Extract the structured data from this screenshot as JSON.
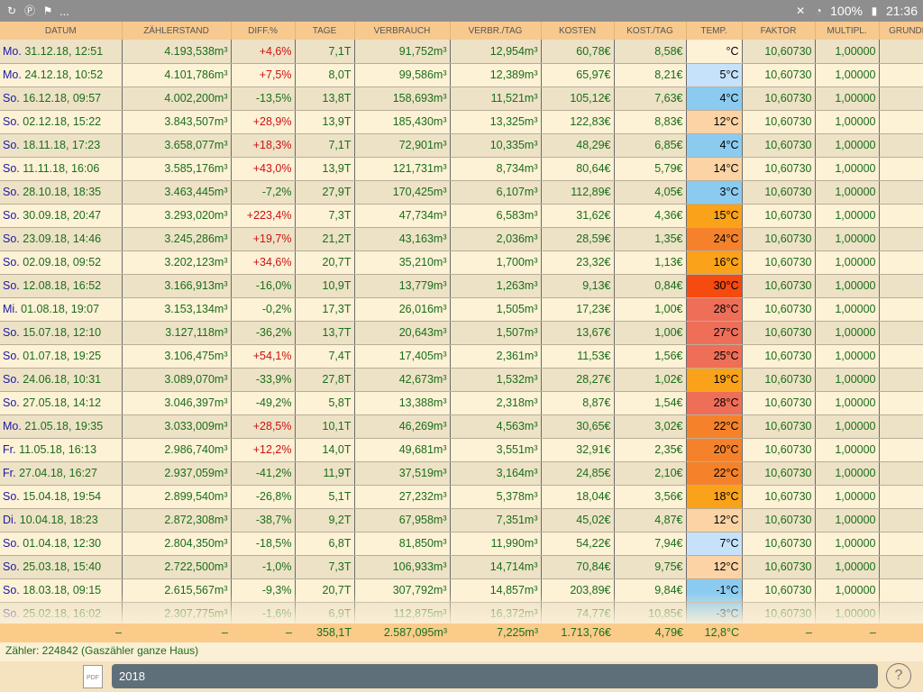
{
  "status_bar": {
    "notification_icons": [
      "sync-icon",
      "pinterest-icon",
      "flag-icon"
    ],
    "more": "...",
    "battery": "100%",
    "time": "21:36"
  },
  "table": {
    "columns": [
      "DATUM",
      "ZÄHLERSTAND",
      "DIFF.%",
      "TAGE",
      "VERBRAUCH",
      "VERBR./TAG",
      "KOSTEN",
      "KOST./TAG",
      "TEMP.",
      "FAKTOR",
      "MULTIPL.",
      "GRUNDF"
    ],
    "rows": [
      {
        "wd": "Mo.",
        "date": "31.12.18, 12:51",
        "meter": "4.193,538m³",
        "diff": "+4,6%",
        "days": "7,1T",
        "usage": "91,752m³",
        "per_day": "12,954m³",
        "cost": "60,78€",
        "cost_day": "8,58€",
        "temp": "°C",
        "temp_color": "#fdf1d6",
        "factor": "10,60730",
        "mult": "1,00000"
      },
      {
        "wd": "Mo.",
        "date": "24.12.18, 10:52",
        "meter": "4.101,786m³",
        "diff": "+7,5%",
        "days": "8,0T",
        "usage": "99,586m³",
        "per_day": "12,389m³",
        "cost": "65,97€",
        "cost_day": "8,21€",
        "temp": "5°C",
        "temp_color": "#c6e2fb",
        "factor": "10,60730",
        "mult": "1,00000"
      },
      {
        "wd": "So.",
        "date": "16.12.18, 09:57",
        "meter": "4.002,200m³",
        "diff": "-13,5%",
        "days": "13,8T",
        "usage": "158,693m³",
        "per_day": "11,521m³",
        "cost": "105,12€",
        "cost_day": "7,63€",
        "temp": "4°C",
        "temp_color": "#8ccbf0",
        "factor": "10,60730",
        "mult": "1,00000"
      },
      {
        "wd": "So.",
        "date": "02.12.18, 15:22",
        "meter": "3.843,507m³",
        "diff": "+28,9%",
        "days": "13,9T",
        "usage": "185,430m³",
        "per_day": "13,325m³",
        "cost": "122,83€",
        "cost_day": "8,83€",
        "temp": "12°C",
        "temp_color": "#fbd3a4",
        "factor": "10,60730",
        "mult": "1,00000"
      },
      {
        "wd": "So.",
        "date": "18.11.18, 17:23",
        "meter": "3.658,077m³",
        "diff": "+18,3%",
        "days": "7,1T",
        "usage": "72,901m³",
        "per_day": "10,335m³",
        "cost": "48,29€",
        "cost_day": "6,85€",
        "temp": "4°C",
        "temp_color": "#8ccbf0",
        "factor": "10,60730",
        "mult": "1,00000"
      },
      {
        "wd": "So.",
        "date": "11.11.18, 16:06",
        "meter": "3.585,176m³",
        "diff": "+43,0%",
        "days": "13,9T",
        "usage": "121,731m³",
        "per_day": "8,734m³",
        "cost": "80,64€",
        "cost_day": "5,79€",
        "temp": "14°C",
        "temp_color": "#fbd3a4",
        "factor": "10,60730",
        "mult": "1,00000"
      },
      {
        "wd": "So.",
        "date": "28.10.18, 18:35",
        "meter": "3.463,445m³",
        "diff": "-7,2%",
        "days": "27,9T",
        "usage": "170,425m³",
        "per_day": "6,107m³",
        "cost": "112,89€",
        "cost_day": "4,05€",
        "temp": "3°C",
        "temp_color": "#8ccbf0",
        "factor": "10,60730",
        "mult": "1,00000"
      },
      {
        "wd": "So.",
        "date": "30.09.18, 20:47",
        "meter": "3.293,020m³",
        "diff": "+223,4%",
        "days": "7,3T",
        "usage": "47,734m³",
        "per_day": "6,583m³",
        "cost": "31,62€",
        "cost_day": "4,36€",
        "temp": "15°C",
        "temp_color": "#f9a21a",
        "factor": "10,60730",
        "mult": "1,00000"
      },
      {
        "wd": "So.",
        "date": "23.09.18, 14:46",
        "meter": "3.245,286m³",
        "diff": "+19,7%",
        "days": "21,2T",
        "usage": "43,163m³",
        "per_day": "2,036m³",
        "cost": "28,59€",
        "cost_day": "1,35€",
        "temp": "24°C",
        "temp_color": "#f5822a",
        "factor": "10,60730",
        "mult": "1,00000"
      },
      {
        "wd": "So.",
        "date": "02.09.18, 09:52",
        "meter": "3.202,123m³",
        "diff": "+34,6%",
        "days": "20,7T",
        "usage": "35,210m³",
        "per_day": "1,700m³",
        "cost": "23,32€",
        "cost_day": "1,13€",
        "temp": "16°C",
        "temp_color": "#f9a21a",
        "factor": "10,60730",
        "mult": "1,00000"
      },
      {
        "wd": "So.",
        "date": "12.08.18, 16:52",
        "meter": "3.166,913m³",
        "diff": "-16,0%",
        "days": "10,9T",
        "usage": "13,779m³",
        "per_day": "1,263m³",
        "cost": "9,13€",
        "cost_day": "0,84€",
        "temp": "30°C",
        "temp_color": "#f54a10",
        "factor": "10,60730",
        "mult": "1,00000"
      },
      {
        "wd": "Mi.",
        "date": "01.08.18, 19:07",
        "meter": "3.153,134m³",
        "diff": "-0,2%",
        "days": "17,3T",
        "usage": "26,016m³",
        "per_day": "1,505m³",
        "cost": "17,23€",
        "cost_day": "1,00€",
        "temp": "28°C",
        "temp_color": "#ef6e58",
        "factor": "10,60730",
        "mult": "1,00000"
      },
      {
        "wd": "So.",
        "date": "15.07.18, 12:10",
        "meter": "3.127,118m³",
        "diff": "-36,2%",
        "days": "13,7T",
        "usage": "20,643m³",
        "per_day": "1,507m³",
        "cost": "13,67€",
        "cost_day": "1,00€",
        "temp": "27°C",
        "temp_color": "#ef6e58",
        "factor": "10,60730",
        "mult": "1,00000"
      },
      {
        "wd": "So.",
        "date": "01.07.18, 19:25",
        "meter": "3.106,475m³",
        "diff": "+54,1%",
        "days": "7,4T",
        "usage": "17,405m³",
        "per_day": "2,361m³",
        "cost": "11,53€",
        "cost_day": "1,56€",
        "temp": "25°C",
        "temp_color": "#ef6e58",
        "factor": "10,60730",
        "mult": "1,00000"
      },
      {
        "wd": "So.",
        "date": "24.06.18, 10:31",
        "meter": "3.089,070m³",
        "diff": "-33,9%",
        "days": "27,8T",
        "usage": "42,673m³",
        "per_day": "1,532m³",
        "cost": "28,27€",
        "cost_day": "1,02€",
        "temp": "19°C",
        "temp_color": "#f9a21a",
        "factor": "10,60730",
        "mult": "1,00000"
      },
      {
        "wd": "So.",
        "date": "27.05.18, 14:12",
        "meter": "3.046,397m³",
        "diff": "-49,2%",
        "days": "5,8T",
        "usage": "13,388m³",
        "per_day": "2,318m³",
        "cost": "8,87€",
        "cost_day": "1,54€",
        "temp": "28°C",
        "temp_color": "#ef6e58",
        "factor": "10,60730",
        "mult": "1,00000"
      },
      {
        "wd": "Mo.",
        "date": "21.05.18, 19:35",
        "meter": "3.033,009m³",
        "diff": "+28,5%",
        "days": "10,1T",
        "usage": "46,269m³",
        "per_day": "4,563m³",
        "cost": "30,65€",
        "cost_day": "3,02€",
        "temp": "22°C",
        "temp_color": "#f5822a",
        "factor": "10,60730",
        "mult": "1,00000"
      },
      {
        "wd": "Fr.",
        "date": "11.05.18, 16:13",
        "meter": "2.986,740m³",
        "diff": "+12,2%",
        "days": "14,0T",
        "usage": "49,681m³",
        "per_day": "3,551m³",
        "cost": "32,91€",
        "cost_day": "2,35€",
        "temp": "20°C",
        "temp_color": "#f5822a",
        "factor": "10,60730",
        "mult": "1,00000"
      },
      {
        "wd": "Fr.",
        "date": "27.04.18, 16:27",
        "meter": "2.937,059m³",
        "diff": "-41,2%",
        "days": "11,9T",
        "usage": "37,519m³",
        "per_day": "3,164m³",
        "cost": "24,85€",
        "cost_day": "2,10€",
        "temp": "22°C",
        "temp_color": "#f5822a",
        "factor": "10,60730",
        "mult": "1,00000"
      },
      {
        "wd": "So.",
        "date": "15.04.18, 19:54",
        "meter": "2.899,540m³",
        "diff": "-26,8%",
        "days": "5,1T",
        "usage": "27,232m³",
        "per_day": "5,378m³",
        "cost": "18,04€",
        "cost_day": "3,56€",
        "temp": "18°C",
        "temp_color": "#f9a21a",
        "factor": "10,60730",
        "mult": "1,00000"
      },
      {
        "wd": "Di.",
        "date": "10.04.18, 18:23",
        "meter": "2.872,308m³",
        "diff": "-38,7%",
        "days": "9,2T",
        "usage": "67,958m³",
        "per_day": "7,351m³",
        "cost": "45,02€",
        "cost_day": "4,87€",
        "temp": "12°C",
        "temp_color": "#fbd3a4",
        "factor": "10,60730",
        "mult": "1,00000"
      },
      {
        "wd": "So.",
        "date": "01.04.18, 12:30",
        "meter": "2.804,350m³",
        "diff": "-18,5%",
        "days": "6,8T",
        "usage": "81,850m³",
        "per_day": "11,990m³",
        "cost": "54,22€",
        "cost_day": "7,94€",
        "temp": "7°C",
        "temp_color": "#c6e2fb",
        "factor": "10,60730",
        "mult": "1,00000"
      },
      {
        "wd": "So.",
        "date": "25.03.18, 15:40",
        "meter": "2.722,500m³",
        "diff": "-1,0%",
        "days": "7,3T",
        "usage": "106,933m³",
        "per_day": "14,714m³",
        "cost": "70,84€",
        "cost_day": "9,75€",
        "temp": "12°C",
        "temp_color": "#fbd3a4",
        "factor": "10,60730",
        "mult": "1,00000"
      },
      {
        "wd": "So.",
        "date": "18.03.18, 09:15",
        "meter": "2.615,567m³",
        "diff": "-9,3%",
        "days": "20,7T",
        "usage": "307,792m³",
        "per_day": "14,857m³",
        "cost": "203,89€",
        "cost_day": "9,84€",
        "temp": "-1°C",
        "temp_color": "#8ccbf0",
        "factor": "10,60730",
        "mult": "1,00000"
      },
      {
        "wd": "So.",
        "date": "25.02.18, 16:02",
        "meter": "2.307,775m³",
        "diff": "-1,6%",
        "days": "6,9T",
        "usage": "112,875m³",
        "per_day": "16,372m³",
        "cost": "74,77€",
        "cost_day": "10,85€",
        "temp": "-3°C",
        "temp_color": "#8ccbf0",
        "factor": "10,60730",
        "mult": "1,00000"
      }
    ]
  },
  "totals": {
    "dash": "–",
    "days": "358,1T",
    "usage": "2.587,095m³",
    "per_day": "7,225m³",
    "cost": "1.713,76€",
    "cost_day": "4,79€",
    "temp": "12,8°C"
  },
  "meter_label": "Zähler: 224842 (Gaszähler ganze Haus)",
  "bottom": {
    "pdf_label": "PDF",
    "year_value": "2018",
    "help_label": "?"
  }
}
